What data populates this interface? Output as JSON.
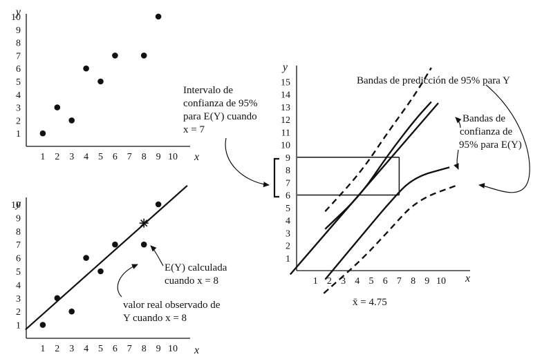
{
  "chart_data": [
    {
      "type": "scatter",
      "xlabel": "x",
      "ylabel": "y",
      "xticks": [
        "1",
        "2",
        "3",
        "4",
        "5",
        "6",
        "7",
        "8",
        "9",
        "10"
      ],
      "yticks": [
        "1",
        "2",
        "3",
        "4",
        "5",
        "6",
        "7",
        "8",
        "9",
        "10"
      ],
      "xlim": [
        0,
        10
      ],
      "ylim": [
        0,
        10
      ],
      "points": [
        [
          1,
          1
        ],
        [
          2,
          3
        ],
        [
          3,
          2
        ],
        [
          4,
          6
        ],
        [
          5,
          5
        ],
        [
          6,
          7
        ],
        [
          8,
          7
        ],
        [
          9,
          10
        ]
      ]
    },
    {
      "type": "scatter",
      "xlabel": "x",
      "ylabel": "y",
      "xticks": [
        "1",
        "2",
        "3",
        "4",
        "5",
        "6",
        "7",
        "8",
        "9",
        "10"
      ],
      "yticks": [
        "1",
        "2",
        "3",
        "4",
        "5",
        "6",
        "7",
        "8",
        "9",
        "10"
      ],
      "xlim": [
        0,
        10
      ],
      "ylim": [
        0,
        10
      ],
      "points": [
        [
          1,
          1
        ],
        [
          2,
          3
        ],
        [
          3,
          2
        ],
        [
          4,
          6
        ],
        [
          5,
          5
        ],
        [
          6,
          7
        ],
        [
          8,
          7
        ],
        [
          9,
          10
        ]
      ],
      "fitted_line": [
        [
          -0.2,
          0.65
        ],
        [
          11,
          11.4
        ]
      ],
      "estimate_point": [
        8,
        8.6
      ],
      "annotations": {
        "estimate_1": "E(Y) calculada",
        "estimate_2": "cuando x = 8",
        "observed_1": "valor real observado de",
        "observed_2": "Y cuando x = 8"
      }
    },
    {
      "type": "line",
      "xlabel": "x",
      "ylabel": "y",
      "xticks": [
        "1",
        "2",
        "3",
        "4",
        "5",
        "6",
        "7",
        "8",
        "9",
        "10"
      ],
      "yticks": [
        "1",
        "2",
        "3",
        "4",
        "5",
        "6",
        "7",
        "8",
        "9",
        "10",
        "11",
        "12",
        "13",
        "14",
        "15"
      ],
      "xlim": [
        0,
        10
      ],
      "ylim": [
        0,
        15
      ],
      "series": [
        {
          "role": "regression",
          "style": "solid",
          "points": [
            [
              -0.8,
              -0.3
            ],
            [
              9.8,
              13.3
            ]
          ]
        },
        {
          "role": "confidence_upper",
          "style": "solid",
          "points": [
            [
              1.7,
              3.3
            ],
            [
              4.25,
              6.0
            ],
            [
              6.2,
              9.2
            ],
            [
              8.15,
              12.0
            ],
            [
              9.3,
              13.4
            ]
          ]
        },
        {
          "role": "confidence_lower",
          "style": "solid",
          "points": [
            [
              1.7,
              -0.7
            ],
            [
              4.25,
              2.7
            ],
            [
              6.3,
              5.4
            ],
            [
              8.0,
              7.4
            ],
            [
              10.6,
              8.2
            ]
          ]
        },
        {
          "role": "prediction_upper",
          "style": "dashed",
          "points": [
            [
              1.7,
              4.7
            ],
            [
              4.25,
              7.8
            ],
            [
              6.2,
              11.0
            ],
            [
              8.1,
              13.9
            ],
            [
              9.3,
              16.1
            ]
          ]
        },
        {
          "role": "prediction_lower",
          "style": "dashed",
          "points": [
            [
              1.6,
              -1.8
            ],
            [
              4.25,
              0.8
            ],
            [
              6.2,
              3.1
            ],
            [
              8.25,
              5.6
            ],
            [
              11.2,
              6.8
            ]
          ]
        }
      ],
      "interval": {
        "x": 7,
        "low": 6,
        "high": 9
      },
      "annotations": {
        "prediction_bands": "Bandas de predicción de 95% para Y",
        "confidence_1": "Bandas de",
        "confidence_2": "confianza de",
        "confidence_3": "95% para E(Y)",
        "interval_1": "Intervalo de",
        "interval_2": "confianza de 95%",
        "interval_3": "para E(Y) cuando",
        "interval_4": "x = 7",
        "xbar": "x̄ = 4.75"
      }
    }
  ]
}
